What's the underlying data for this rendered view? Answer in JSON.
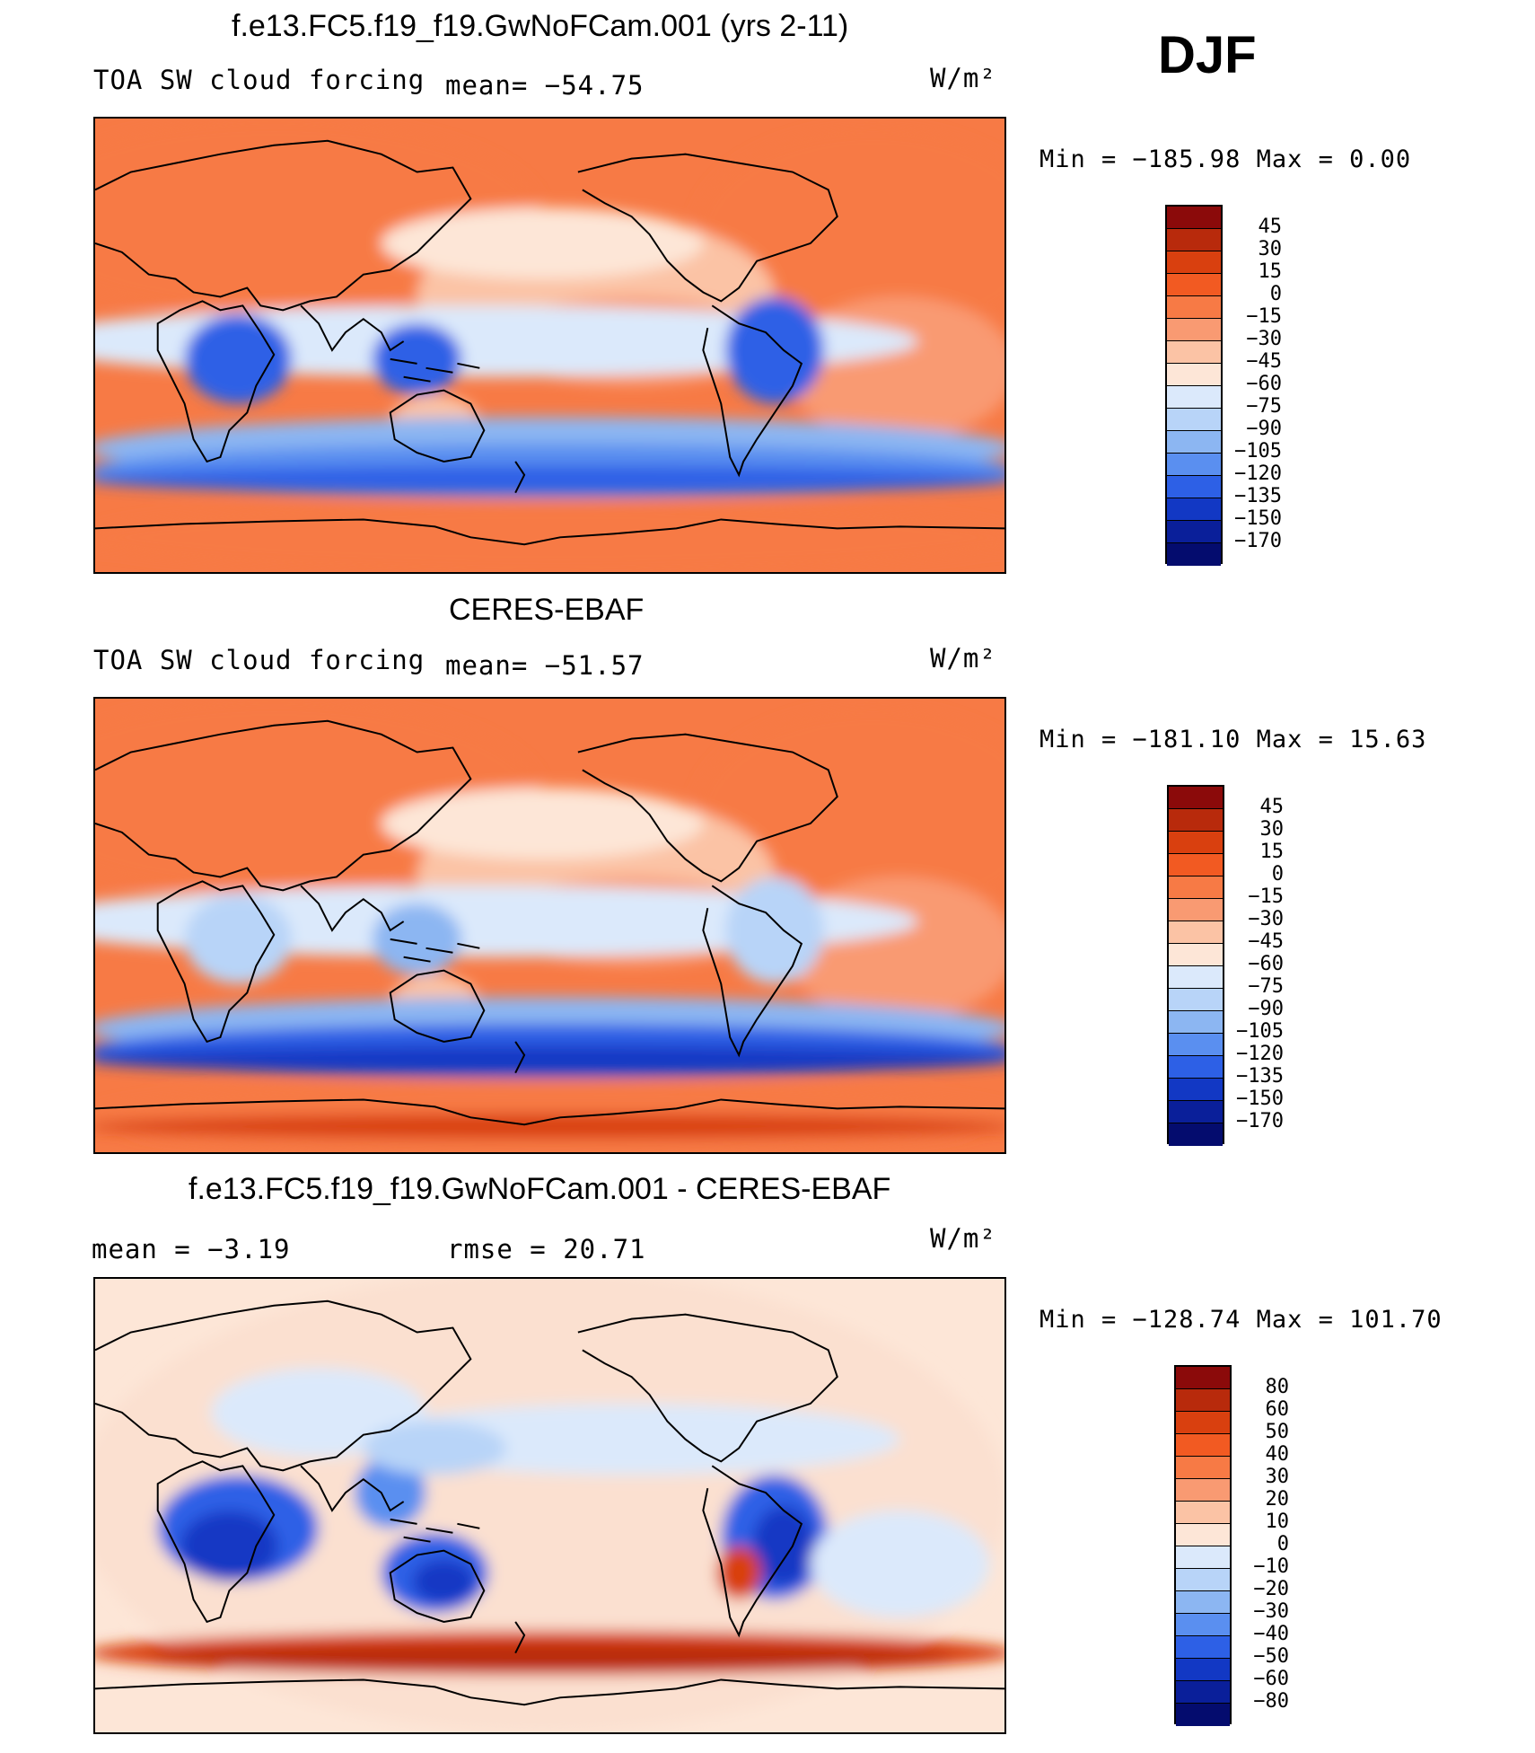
{
  "season": "DJF",
  "panels": [
    {
      "title": "f.e13.FC5.f19_f19.GwNoFCam.001 (yrs 2-11)",
      "left_label": "TOA SW cloud forcing",
      "mid_label": "mean= −54.75",
      "units": "W/m²",
      "minmax": "Min = −185.98 Max =    0.00",
      "kind": "field",
      "levels": [
        "45",
        "30",
        "15",
        "0",
        "−15",
        "−30",
        "−45",
        "−60",
        "−75",
        "−90",
        "−105",
        "−120",
        "−135",
        "−150",
        "−170"
      ],
      "colors": [
        "#8b0a0a",
        "#b82a0c",
        "#d9400f",
        "#f25a22",
        "#f77a45",
        "#f99a72",
        "#fbc3a5",
        "#fde6d7",
        "#dbe9fb",
        "#b8d4f8",
        "#8cb6f2",
        "#5a8ff0",
        "#2d60e6",
        "#1238c4",
        "#0a1f9a",
        "#040c6e"
      ]
    },
    {
      "title": "CERES-EBAF",
      "left_label": "TOA SW cloud forcing",
      "mid_label": "mean= −51.57",
      "units": "W/m²",
      "minmax": "Min = −181.10 Max =   15.63",
      "kind": "obs",
      "levels": [
        "45",
        "30",
        "15",
        "0",
        "−15",
        "−30",
        "−45",
        "−60",
        "−75",
        "−90",
        "−105",
        "−120",
        "−135",
        "−150",
        "−170"
      ],
      "colors": [
        "#8b0a0a",
        "#b82a0c",
        "#d9400f",
        "#f25a22",
        "#f77a45",
        "#f99a72",
        "#fbc3a5",
        "#fde6d7",
        "#dbe9fb",
        "#b8d4f8",
        "#8cb6f2",
        "#5a8ff0",
        "#2d60e6",
        "#1238c4",
        "#0a1f9a",
        "#040c6e"
      ]
    },
    {
      "title": "f.e13.FC5.f19_f19.GwNoFCam.001 - CERES-EBAF",
      "left_label": "mean =   −3.19",
      "mid_label": "rmse =   20.71",
      "units": "W/m²",
      "minmax": "Min = −128.74 Max = 101.70",
      "kind": "diff",
      "levels": [
        "80",
        "60",
        "50",
        "40",
        "30",
        "20",
        "10",
        "0",
        "−10",
        "−20",
        "−30",
        "−40",
        "−50",
        "−60",
        "−80"
      ],
      "colors": [
        "#8b0a0a",
        "#b82a0c",
        "#d9400f",
        "#f25a22",
        "#f77a45",
        "#f99a72",
        "#fbc3a5",
        "#fde6d7",
        "#dbe9fb",
        "#b8d4f8",
        "#8cb6f2",
        "#5a8ff0",
        "#2d60e6",
        "#1238c4",
        "#0a1f9a",
        "#040c6e"
      ]
    }
  ]
}
